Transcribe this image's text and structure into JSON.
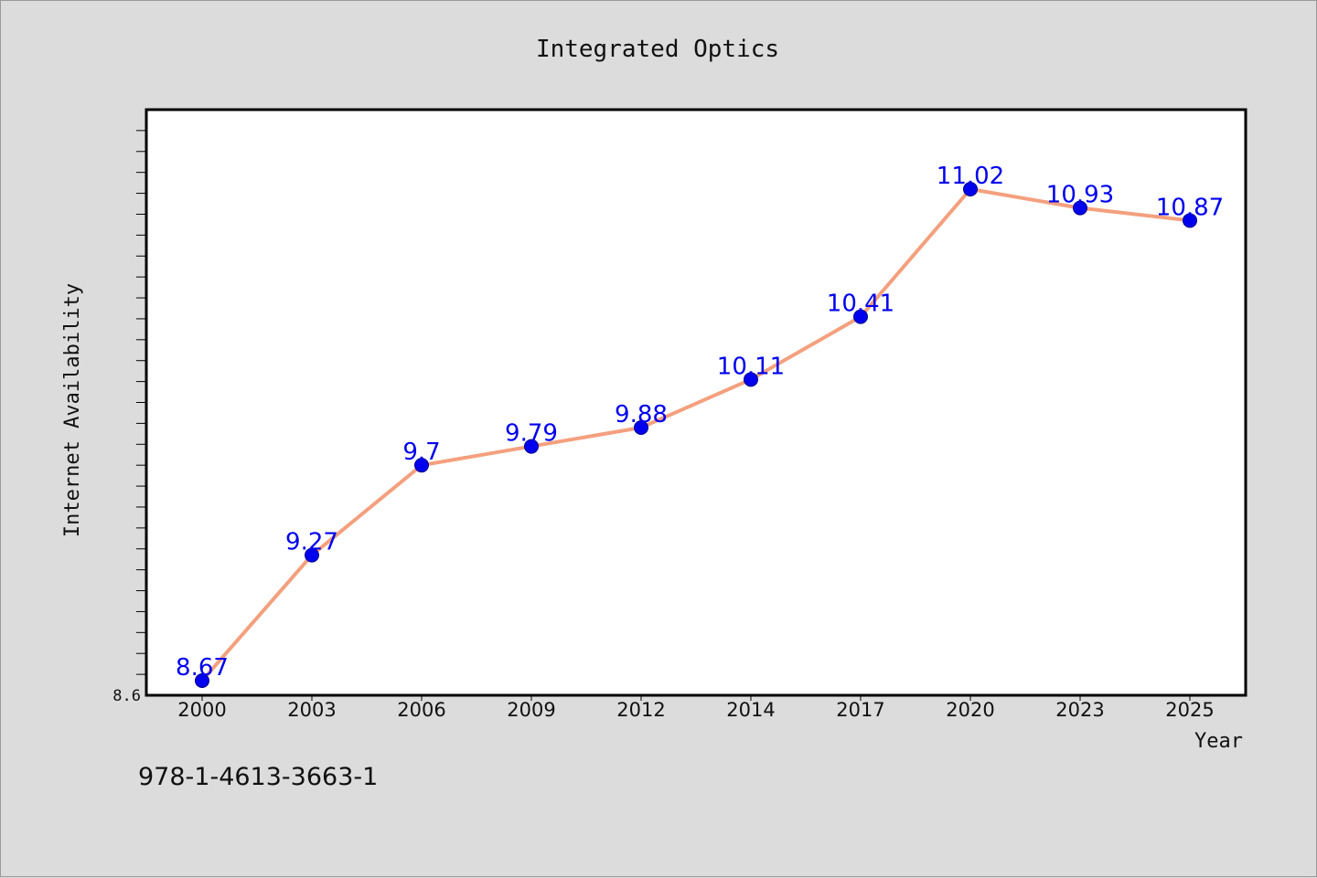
{
  "chart_data": {
    "type": "line",
    "title": "Integrated Optics",
    "xlabel": "Year",
    "ylabel": "Internet Availability",
    "categories": [
      "2000",
      "2003",
      "2006",
      "2009",
      "2012",
      "2014",
      "2017",
      "2020",
      "2023",
      "2025"
    ],
    "series": [
      {
        "values": [
          8.67,
          9.27,
          9.7,
          9.79,
          9.88,
          10.11,
          10.41,
          11.02,
          10.93,
          10.87
        ],
        "line_color": "#f4a07e",
        "marker_color": "#0000ee",
        "label_color": "#0000ee"
      }
    ],
    "ylim": [
      8.6,
      11.4
    ],
    "yticks_labeled": [
      "8.6"
    ],
    "grid": false,
    "legend": "none"
  },
  "footer": {
    "id_text": "978-1-4613-3663-1"
  },
  "colors": {
    "background": "#dcdcdc",
    "plot_background": "#ffffff"
  }
}
